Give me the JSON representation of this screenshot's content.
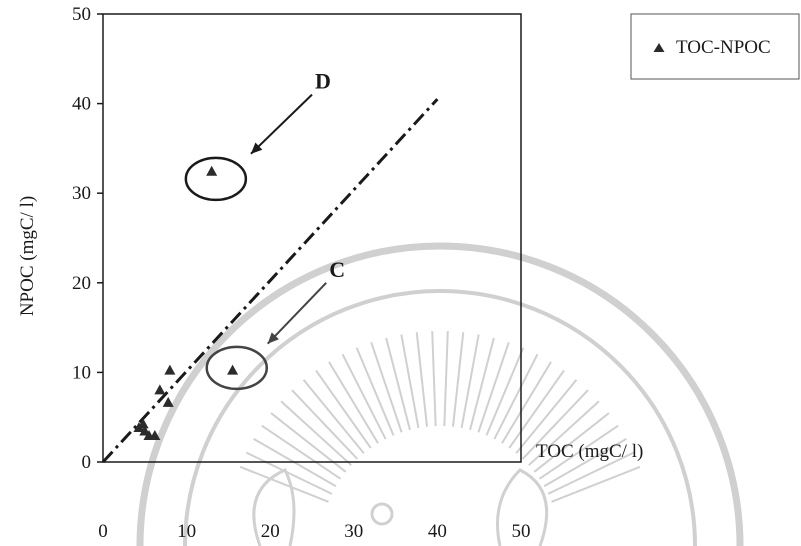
{
  "chart_data": {
    "type": "scatter",
    "title": "",
    "xlabel": "TOC (mgC/ l)",
    "ylabel": "NPOC (mgC/ l)",
    "xlim": [
      0,
      50
    ],
    "ylim": [
      0,
      50
    ],
    "x_ticks": [
      "0",
      "10",
      "20",
      "30",
      "40",
      "50"
    ],
    "y_ticks": [
      "0",
      "10",
      "20",
      "30",
      "40",
      "50"
    ],
    "grid": false,
    "legend_position": "top-right",
    "series": [
      {
        "name": "TOC-NPOC",
        "marker": "triangle",
        "color": "#2b2b2b",
        "points": [
          {
            "x": 4.3,
            "y": 3.8
          },
          {
            "x": 4.8,
            "y": 4.2
          },
          {
            "x": 5.0,
            "y": 3.4
          },
          {
            "x": 5.5,
            "y": 2.9
          },
          {
            "x": 6.2,
            "y": 2.9
          },
          {
            "x": 6.8,
            "y": 8.0
          },
          {
            "x": 7.8,
            "y": 6.6
          },
          {
            "x": 8.0,
            "y": 10.2
          },
          {
            "x": 15.5,
            "y": 10.2
          },
          {
            "x": 13.0,
            "y": 32.4
          }
        ]
      }
    ],
    "trendline": {
      "style": "dash-dot",
      "color": "#1a1a1a",
      "from": {
        "x": 0,
        "y": 0
      },
      "to": {
        "x": 40,
        "y": 40.5
      }
    },
    "annotations": [
      {
        "label": "D",
        "circle_center": {
          "x": 13.5,
          "y": 31.6
        },
        "arrow_from": {
          "x": 25.0,
          "y": 41.0
        },
        "arrow_to": {
          "x": 17.7,
          "y": 34.4
        },
        "color": "#1a1a1a"
      },
      {
        "label": "C",
        "circle_center": {
          "x": 16.0,
          "y": 10.5
        },
        "arrow_from": {
          "x": 26.7,
          "y": 20.0
        },
        "arrow_to": {
          "x": 19.7,
          "y": 13.2
        },
        "color": "#444444"
      }
    ]
  },
  "watermark": {
    "description": "Faint university seal with circular arcs and ornamental emblem in light gray behind the lower chart area",
    "color": "#d0d0d0"
  }
}
